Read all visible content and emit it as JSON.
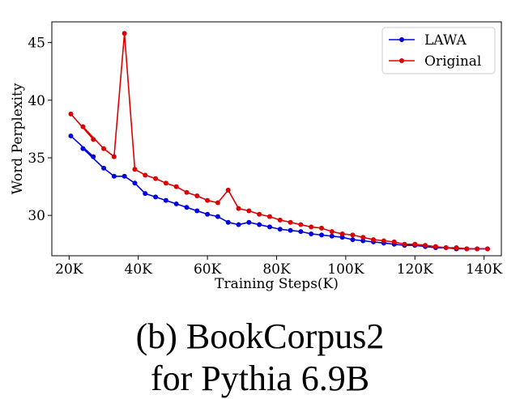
{
  "chart_data": {
    "type": "line",
    "xlabel": "Training Steps(K)",
    "ylabel": "Word Perplexity",
    "xlim": [
      15,
      145
    ],
    "ylim": [
      26.5,
      46.8
    ],
    "xticks": [
      20,
      40,
      60,
      80,
      100,
      120,
      140
    ],
    "xtick_labels": [
      "20K",
      "40K",
      "60K",
      "80K",
      "100K",
      "120K",
      "140K"
    ],
    "yticks": [
      30,
      35,
      40,
      45
    ],
    "ytick_labels": [
      "30",
      "35",
      "40",
      "45"
    ],
    "grid": false,
    "legend_position": "top-right",
    "series": [
      {
        "name": "LAWA",
        "color": "#0000dd",
        "points": [
          [
            20.5,
            36.9
          ],
          [
            27,
            35.1
          ],
          [
            24,
            35.8
          ],
          [
            30,
            34.1
          ],
          [
            33,
            33.4
          ],
          [
            36,
            33.4
          ],
          [
            39,
            32.8
          ],
          [
            42,
            31.9
          ],
          [
            45,
            31.6
          ],
          [
            48,
            31.3
          ],
          [
            51,
            31.0
          ],
          [
            54,
            30.7
          ],
          [
            57,
            30.4
          ],
          [
            60,
            30.1
          ],
          [
            63,
            29.9
          ],
          [
            66,
            29.4
          ],
          [
            69,
            29.2
          ],
          [
            72,
            29.4
          ],
          [
            75,
            29.2
          ],
          [
            78,
            29.0
          ],
          [
            81,
            28.8
          ],
          [
            84,
            28.7
          ],
          [
            87,
            28.6
          ],
          [
            90,
            28.4
          ],
          [
            93,
            28.3
          ],
          [
            96,
            28.2
          ],
          [
            99,
            28.1
          ],
          [
            102,
            27.9
          ],
          [
            105,
            27.8
          ],
          [
            108,
            27.7
          ],
          [
            111,
            27.6
          ],
          [
            114,
            27.5
          ],
          [
            117,
            27.4
          ],
          [
            120,
            27.4
          ],
          [
            123,
            27.3
          ],
          [
            126,
            27.2
          ],
          [
            129,
            27.2
          ],
          [
            132,
            27.1
          ],
          [
            135,
            27.1
          ],
          [
            138,
            27.1
          ],
          [
            141,
            27.1
          ]
        ]
      },
      {
        "name": "Original",
        "color": "#dd0000",
        "points": [
          [
            20.5,
            38.8
          ],
          [
            27,
            36.6
          ],
          [
            24,
            37.7
          ],
          [
            30,
            35.8
          ],
          [
            33,
            35.1
          ],
          [
            36,
            45.8
          ],
          [
            39,
            34.0
          ],
          [
            42,
            33.5
          ],
          [
            45,
            33.2
          ],
          [
            48,
            32.8
          ],
          [
            51,
            32.5
          ],
          [
            54,
            32.0
          ],
          [
            57,
            31.7
          ],
          [
            60,
            31.3
          ],
          [
            63,
            31.1
          ],
          [
            66,
            32.2
          ],
          [
            69,
            30.6
          ],
          [
            72,
            30.4
          ],
          [
            75,
            30.1
          ],
          [
            78,
            29.9
          ],
          [
            81,
            29.6
          ],
          [
            84,
            29.4
          ],
          [
            87,
            29.2
          ],
          [
            90,
            29.0
          ],
          [
            93,
            28.9
          ],
          [
            96,
            28.6
          ],
          [
            99,
            28.4
          ],
          [
            102,
            28.3
          ],
          [
            105,
            28.1
          ],
          [
            108,
            27.9
          ],
          [
            111,
            27.8
          ],
          [
            114,
            27.7
          ],
          [
            117,
            27.5
          ],
          [
            120,
            27.5
          ],
          [
            123,
            27.4
          ],
          [
            126,
            27.3
          ],
          [
            129,
            27.2
          ],
          [
            132,
            27.2
          ],
          [
            135,
            27.1
          ],
          [
            138,
            27.1
          ],
          [
            141,
            27.1
          ]
        ]
      }
    ]
  },
  "caption": "(b) BookCorpus2",
  "caption_partial": "for Pythia 6.9B"
}
